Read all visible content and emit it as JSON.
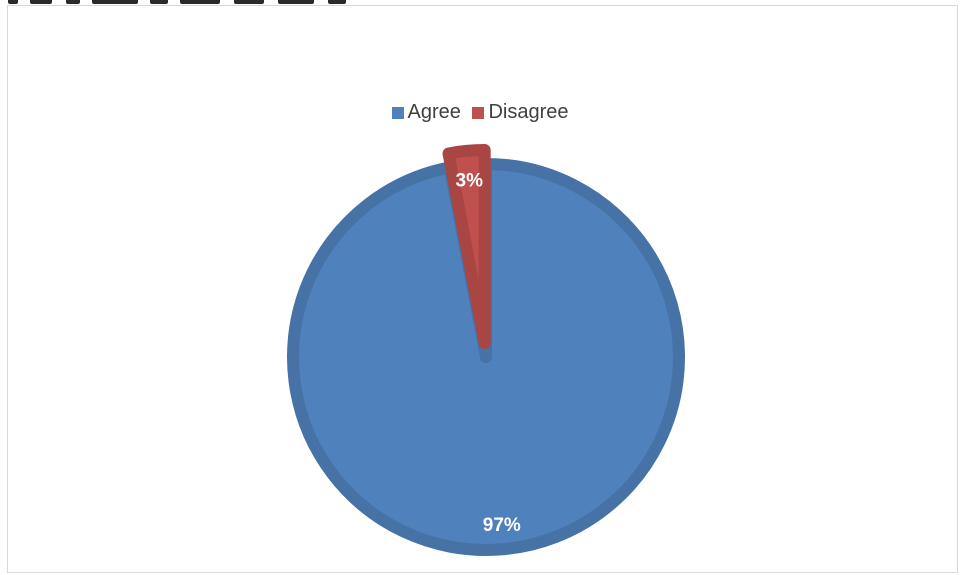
{
  "chart_data": {
    "type": "pie",
    "title": "",
    "categories": [
      "Agree",
      "Disagree"
    ],
    "values": [
      97,
      3
    ],
    "data_labels": [
      "97%",
      "3%"
    ],
    "colors": [
      "#4f81bd",
      "#c0504d"
    ],
    "legend_position": "top"
  }
}
